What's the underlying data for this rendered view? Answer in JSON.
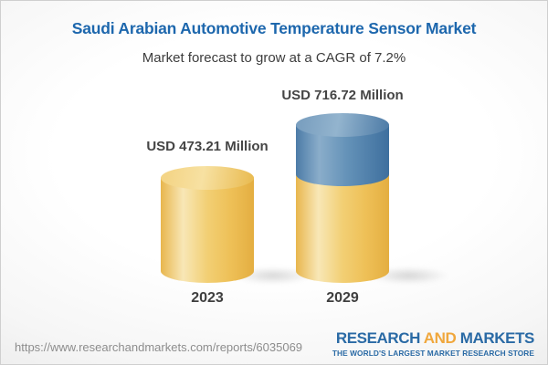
{
  "header": {
    "title": "Saudi Arabian Automotive Temperature Sensor Market",
    "subtitle": "Market forecast to grow at a CAGR of 7.2%"
  },
  "chart_data": {
    "type": "bar",
    "subtype": "3d-cylinder",
    "unit": "USD Million",
    "title": "Saudi Arabian Automotive Temperature Sensor Market",
    "subtitle": "Market forecast to grow at a CAGR of 7.2%",
    "cagr_percent": 7.2,
    "categories": [
      "2023",
      "2029"
    ],
    "values": [
      473.21,
      716.72
    ],
    "bars": [
      {
        "category": "2023",
        "value": 473.21,
        "value_label": "USD 473.21 Million",
        "segment_colors": [
          "#f0c75f"
        ]
      },
      {
        "category": "2029",
        "value": 716.72,
        "value_label": "USD 716.72 Million",
        "segment_colors": [
          "#f0c75f",
          "#5d8ab1"
        ]
      }
    ],
    "legend": "none",
    "gridlines": false,
    "ylim": [
      0,
      716.72
    ]
  },
  "footer": {
    "url": "https://www.researchandmarkets.com/reports/6035069",
    "logo": {
      "word1": "RESEARCH",
      "word2": "AND",
      "word3": "MARKETS",
      "tagline": "THE WORLD'S LARGEST MARKET RESEARCH STORE"
    }
  },
  "colors": {
    "title_blue": "#1d67ad",
    "subtitle_gray": "#3d3d3d",
    "value_label_gray": "#454545",
    "bar_yellow": "#f0c75f",
    "bar_blue": "#5d8ab1",
    "url_gray": "#8d8d8d",
    "logo_blue": "#2a6aa5",
    "logo_gold": "#f0a73c"
  }
}
